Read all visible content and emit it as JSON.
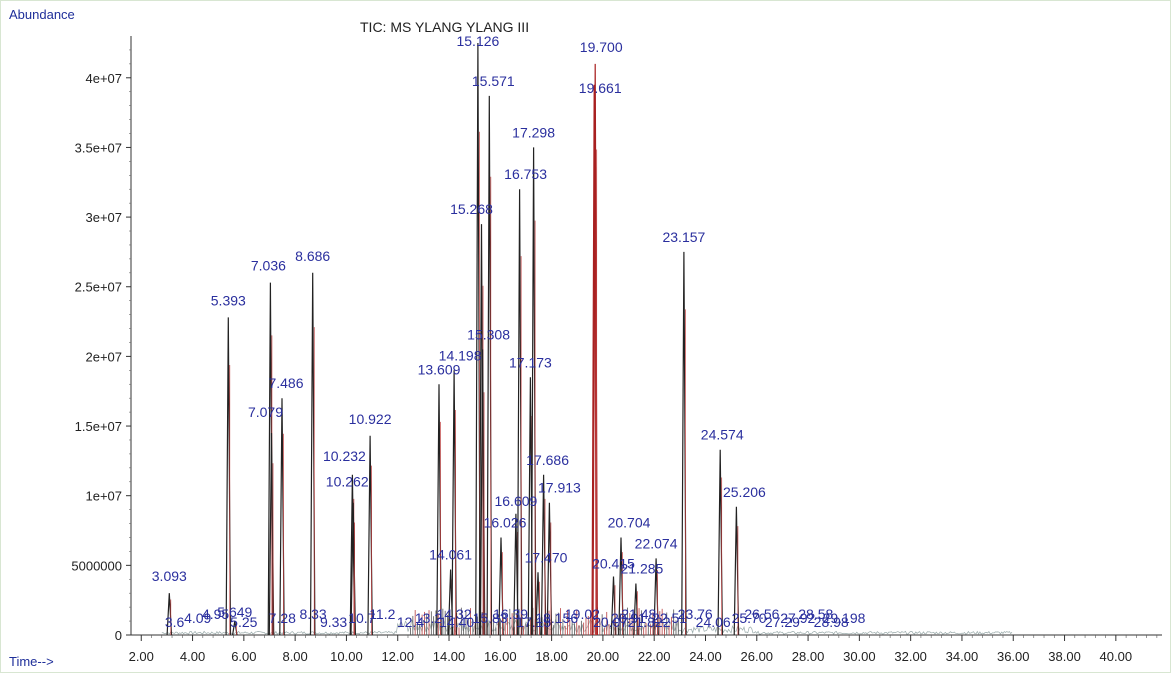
{
  "chart_data": {
    "type": "line",
    "title": "TIC: MS YLANG YLANG III",
    "ylabel": "Abundance",
    "xlabel": "Time-->",
    "xlim": [
      1.6,
      41.8
    ],
    "ylim": [
      0,
      43000000
    ],
    "x_ticks": [
      "2.00",
      "4.00",
      "6.00",
      "8.00",
      "10.00",
      "12.00",
      "14.00",
      "16.00",
      "18.00",
      "20.00",
      "22.00",
      "24.00",
      "26.00",
      "28.00",
      "30.00",
      "32.00",
      "34.00",
      "36.00",
      "38.00",
      "40.00"
    ],
    "y_ticks": [
      {
        "value": 0,
        "label": "0"
      },
      {
        "value": 5000000,
        "label": "5000000"
      },
      {
        "value": 10000000,
        "label": "1e+07"
      },
      {
        "value": 15000000,
        "label": "1.5e+07"
      },
      {
        "value": 20000000,
        "label": "2e+07"
      },
      {
        "value": 25000000,
        "label": "2.5e+07"
      },
      {
        "value": 30000000,
        "label": "3e+07"
      },
      {
        "value": 35000000,
        "label": "3.5e+07"
      },
      {
        "value": 40000000,
        "label": "4e+07"
      }
    ],
    "series": [
      {
        "peaks": [
          {
            "label": "3.093",
            "rt": 3.093,
            "abundance": 3000000
          },
          {
            "label": "5.393",
            "rt": 5.393,
            "abundance": 22800000
          },
          {
            "label": "5.649",
            "rt": 5.649,
            "abundance": 1000000
          },
          {
            "label": "7.036",
            "rt": 7.036,
            "abundance": 25300000
          },
          {
            "label": "7.079",
            "rt": 7.079,
            "abundance": 14500000
          },
          {
            "label": "7.486",
            "rt": 7.486,
            "abundance": 17000000
          },
          {
            "label": "8.686",
            "rt": 8.686,
            "abundance": 26000000
          },
          {
            "label": "10.232",
            "rt": 10.232,
            "abundance": 11500000
          },
          {
            "label": "10.262",
            "rt": 10.262,
            "abundance": 9500000
          },
          {
            "label": "10.922",
            "rt": 10.922,
            "abundance": 14300000
          },
          {
            "label": "13.609",
            "rt": 13.609,
            "abundance": 18000000
          },
          {
            "label": "14.061",
            "rt": 14.061,
            "abundance": 4700000
          },
          {
            "label": "14.198",
            "rt": 14.198,
            "abundance": 19000000
          },
          {
            "label": "15.126",
            "rt": 15.126,
            "abundance": 42500000
          },
          {
            "label": "15.268",
            "rt": 15.268,
            "abundance": 29500000
          },
          {
            "label": "15.308",
            "rt": 15.308,
            "abundance": 20500000
          },
          {
            "label": "15.571",
            "rt": 15.571,
            "abundance": 38700000
          },
          {
            "label": "16.026",
            "rt": 16.026,
            "abundance": 7000000
          },
          {
            "label": "16.609",
            "rt": 16.609,
            "abundance": 8700000
          },
          {
            "label": "16.753",
            "rt": 16.753,
            "abundance": 32000000
          },
          {
            "label": "17.173",
            "rt": 17.173,
            "abundance": 18500000
          },
          {
            "label": "17.298",
            "rt": 17.298,
            "abundance": 35000000
          },
          {
            "label": "17.470",
            "rt": 17.47,
            "abundance": 4500000
          },
          {
            "label": "17.686",
            "rt": 17.686,
            "abundance": 11500000
          },
          {
            "label": "17.913",
            "rt": 17.913,
            "abundance": 9500000
          },
          {
            "label": "19.661",
            "rt": 19.661,
            "abundance": 39500000
          },
          {
            "label": "19.700",
            "rt": 19.7,
            "abundance": 41000000
          },
          {
            "label": "20.415",
            "rt": 20.415,
            "abundance": 4200000
          },
          {
            "label": "20.704",
            "rt": 20.704,
            "abundance": 7000000
          },
          {
            "label": "21.285",
            "rt": 21.285,
            "abundance": 3700000
          },
          {
            "label": "22.074",
            "rt": 22.074,
            "abundance": 5500000
          },
          {
            "label": "23.157",
            "rt": 23.157,
            "abundance": 27500000
          },
          {
            "label": "24.574",
            "rt": 24.574,
            "abundance": 13300000
          },
          {
            "label": "25.206",
            "rt": 25.206,
            "abundance": 9200000
          }
        ],
        "minor_labels": [
          {
            "label": "3.6",
            "rt": 3.3
          },
          {
            "label": "4.09",
            "rt": 4.2
          },
          {
            "label": "4.95",
            "rt": 4.9
          },
          {
            "label": "5.25",
            "rt": 6.0
          },
          {
            "label": "7.28",
            "rt": 7.5
          },
          {
            "label": "8.33",
            "rt": 8.7
          },
          {
            "label": "9.33",
            "rt": 9.5
          },
          {
            "label": "10.7",
            "rt": 10.6
          },
          {
            "label": "11.2",
            "rt": 11.4
          },
          {
            "label": "12.4",
            "rt": 12.5
          },
          {
            "label": "13.2",
            "rt": 13.2
          },
          {
            "label": "14.32",
            "rt": 14.2
          },
          {
            "label": "14.40",
            "rt": 14.3
          },
          {
            "label": "15.83",
            "rt": 15.6
          },
          {
            "label": "16.39",
            "rt": 16.4
          },
          {
            "label": "17.15",
            "rt": 17.3
          },
          {
            "label": "18.156",
            "rt": 18.2
          },
          {
            "label": "19.02",
            "rt": 19.2
          },
          {
            "label": "20.07",
            "rt": 20.3
          },
          {
            "label": "20.91",
            "rt": 21.0
          },
          {
            "label": "21.48",
            "rt": 21.4
          },
          {
            "label": "21.822",
            "rt": 21.8
          },
          {
            "label": "22.51",
            "rt": 22.6
          },
          {
            "label": "23.76",
            "rt": 23.6
          },
          {
            "label": "24.06",
            "rt": 24.3
          },
          {
            "label": "25.70",
            "rt": 25.7
          },
          {
            "label": "26.56",
            "rt": 26.2
          },
          {
            "label": "27.29",
            "rt": 27.0
          },
          {
            "label": "27.92",
            "rt": 27.6
          },
          {
            "label": "28.58",
            "rt": 28.3
          },
          {
            "label": "28.98",
            "rt": 28.9
          },
          {
            "label": "29.198",
            "rt": 29.4
          }
        ]
      }
    ]
  }
}
